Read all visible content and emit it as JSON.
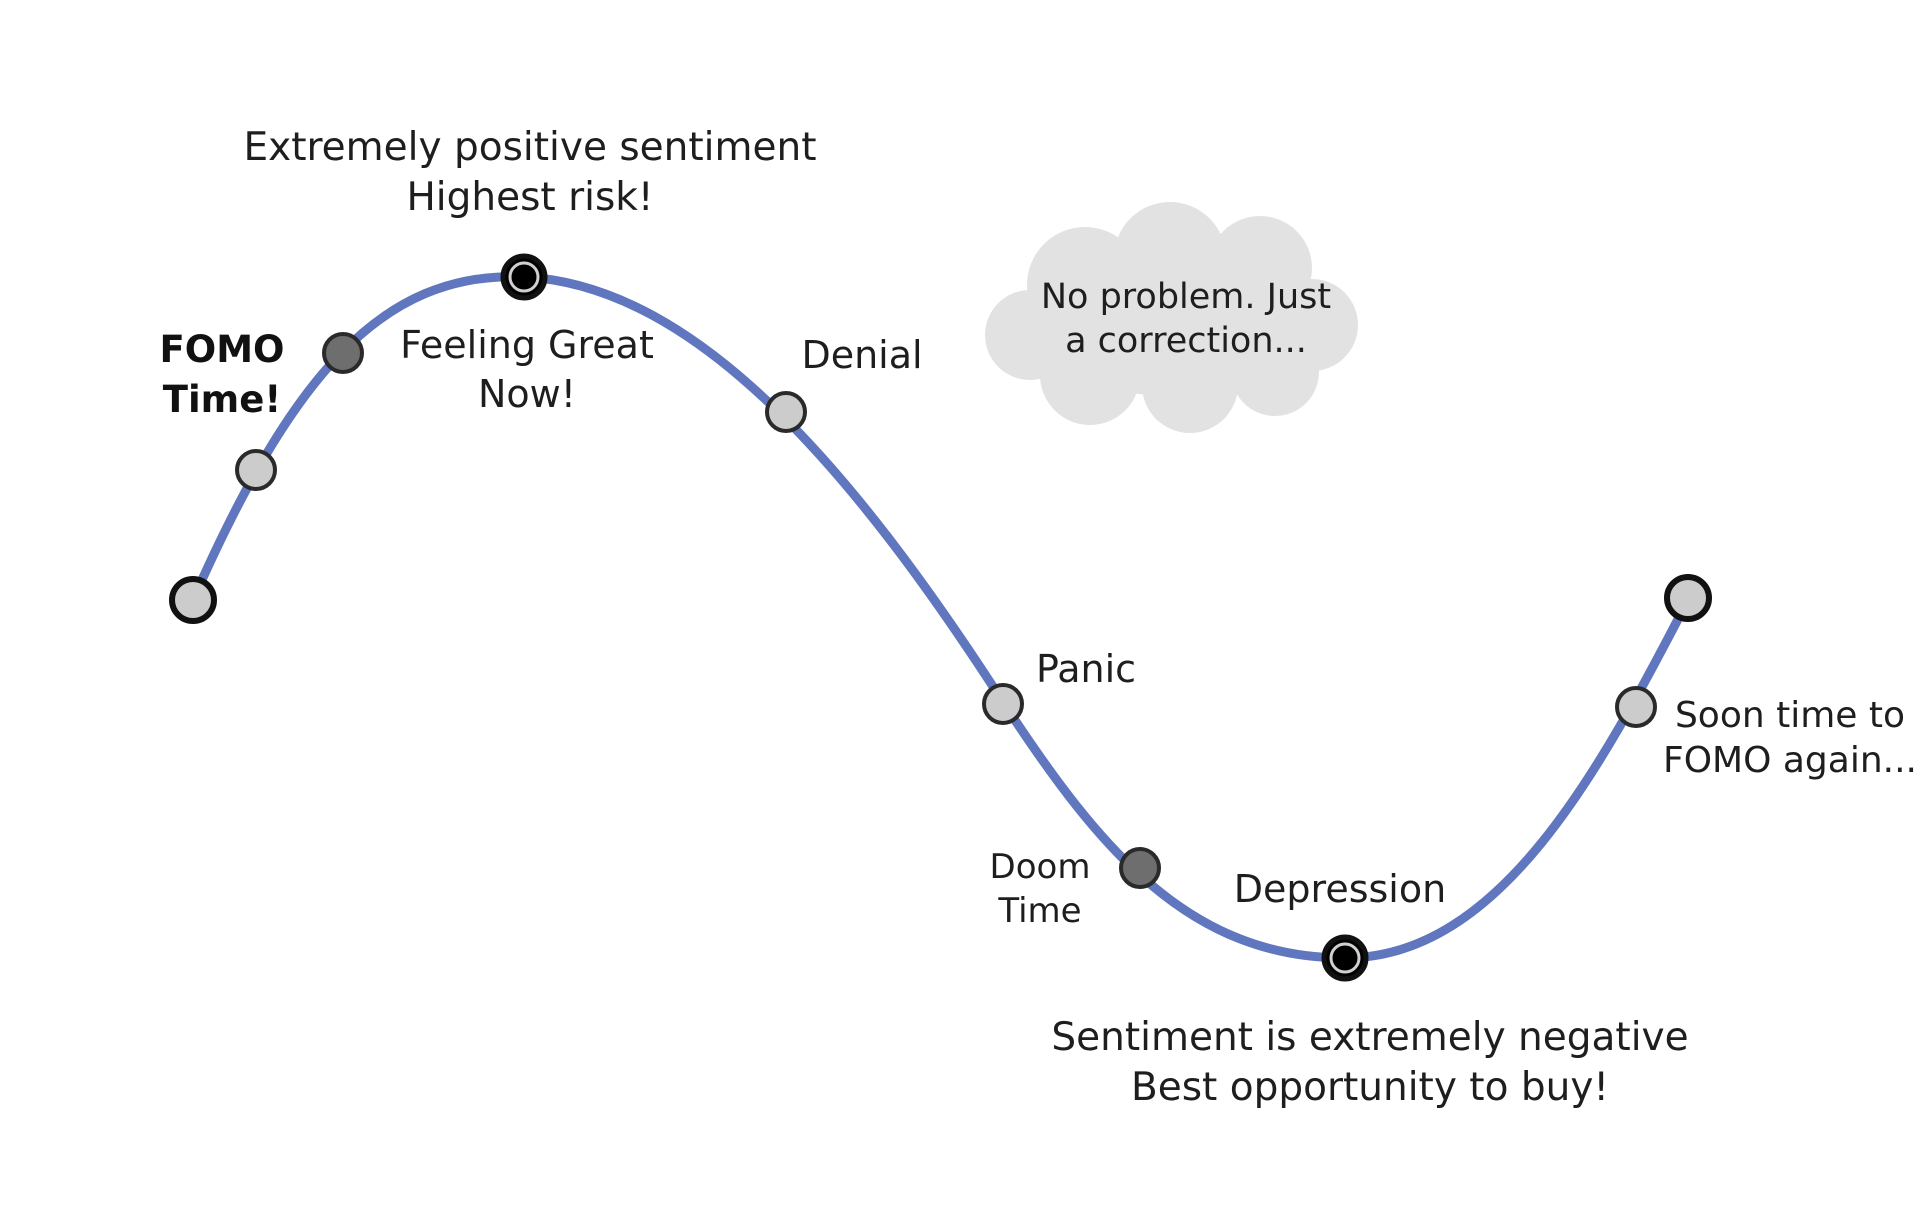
{
  "annotations": {
    "peak_line1": "Extremely positive sentiment",
    "peak_line2": "Highest risk!",
    "fomo_line1": "FOMO",
    "fomo_line2": "Time!",
    "feeling_line1": "Feeling Great",
    "feeling_line2": "Now!",
    "denial": "Denial",
    "cloud_line1": "No problem. Just",
    "cloud_line2": "a correction...",
    "panic": "Panic",
    "doom_line1": "Doom",
    "doom_line2": "Time",
    "depression": "Depression",
    "trough_line1": "Sentiment is extremely negative",
    "trough_line2": "Best opportunity to buy!",
    "again_line1": "Soon time to",
    "again_line2": "FOMO again..."
  },
  "colors": {
    "curve": "#6077c0",
    "cloud": "#e2e2e2",
    "marker_outline": "#111111",
    "marker_light": "#cccccc",
    "marker_medium": "#6e6e6e",
    "marker_dark": "#000000"
  }
}
